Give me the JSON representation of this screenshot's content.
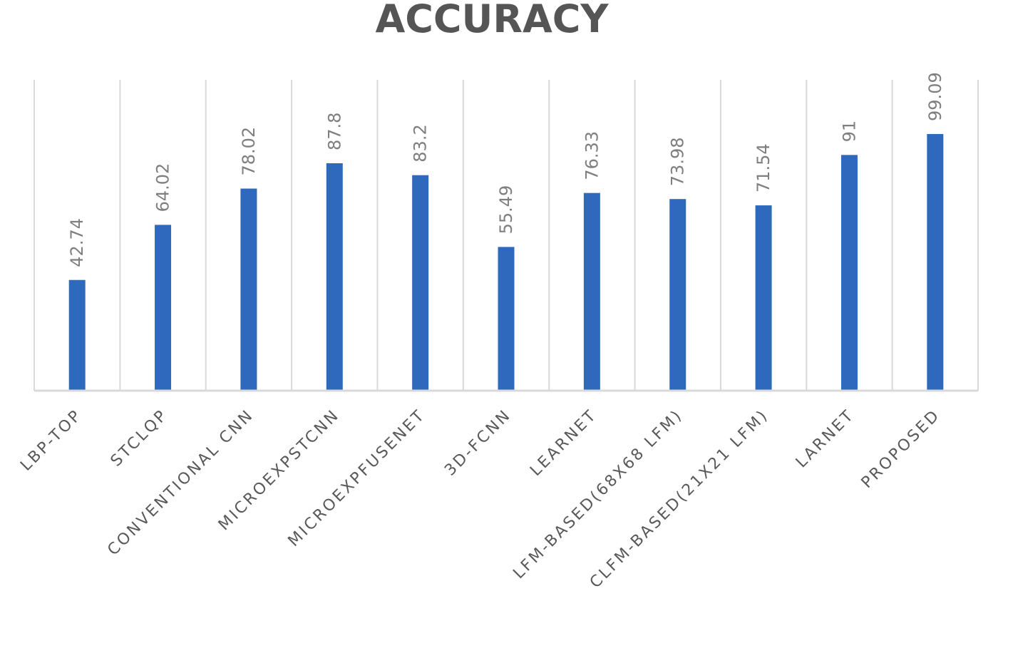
{
  "chart_data": {
    "type": "bar",
    "title": "ACCURACY",
    "xlabel": "",
    "ylabel": "",
    "categories": [
      "LBP-TOP",
      "STCLQP",
      "CONVENTIONAL CNN",
      "MICROEXPSTCNN",
      "MICROEXPFUSENET",
      "3D-FCNN",
      "LEARNET",
      "LFM-BASED(68X68 LFM)",
      "CLFM-BASED(21X21 LFM)",
      "LARNET",
      "PROPOSED"
    ],
    "values": [
      42.74,
      64.02,
      78.02,
      87.8,
      83.2,
      55.49,
      76.33,
      73.98,
      71.54,
      91,
      99.09
    ],
    "value_labels": [
      "42.74",
      "64.02",
      "78.02",
      "87.8",
      "83.2",
      "55.49",
      "76.33",
      "73.98",
      "71.54",
      "91",
      "99.09"
    ],
    "ylim": [
      0,
      120
    ],
    "grid": "vertical category separators",
    "legend": "none",
    "bar_color": "#2e69bd"
  }
}
